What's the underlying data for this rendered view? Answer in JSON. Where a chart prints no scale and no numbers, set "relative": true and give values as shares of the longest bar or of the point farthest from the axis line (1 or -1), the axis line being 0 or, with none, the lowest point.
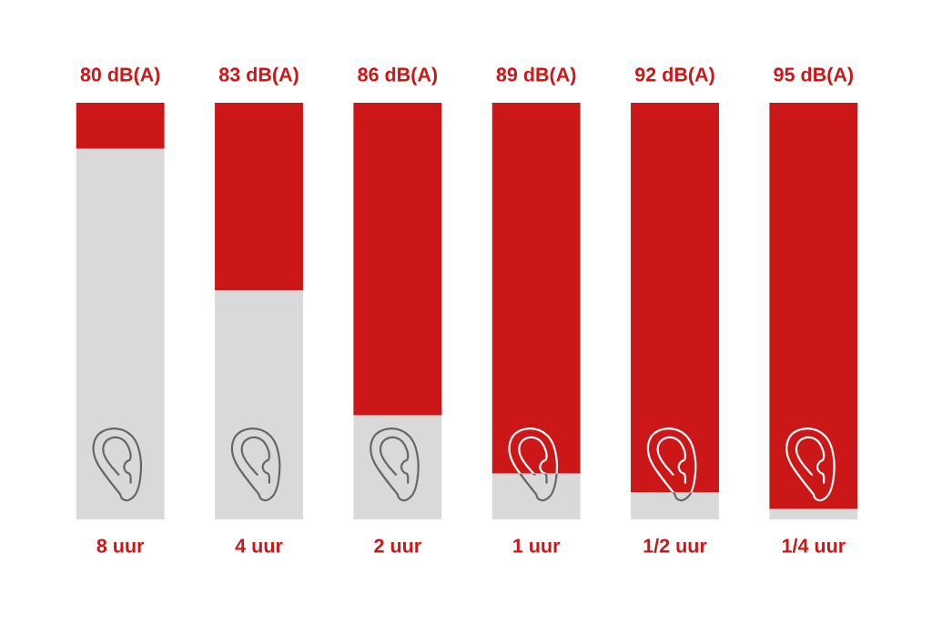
{
  "chart_data": {
    "type": "bar",
    "stacked": true,
    "relative": true,
    "categories": [
      "8 uur",
      "4 uur",
      "2 uur",
      "1 uur",
      "1/2 uur",
      "1/4 uur"
    ],
    "series": [
      {
        "color": "#d9d9d9",
        "values": [
          0.89,
          0.55,
          0.25,
          0.11,
          0.065,
          0.025
        ]
      },
      {
        "color": "#cc1719",
        "values": [
          0.11,
          0.45,
          0.75,
          0.89,
          0.935,
          0.975
        ]
      }
    ],
    "annotations": [
      {
        "text": "80 dB(A)",
        "x": "8 uur",
        "y": 1
      },
      {
        "text": "83 dB(A)",
        "x": "4 uur",
        "y": 1
      },
      {
        "text": "86 dB(A)",
        "x": "2 uur",
        "y": 1
      },
      {
        "text": "89 dB(A)",
        "x": "1 uur",
        "y": 1
      },
      {
        "text": "92 dB(A)",
        "x": "1/2 uur",
        "y": 1
      },
      {
        "text": "95 dB(A)",
        "x": "1/4 uur",
        "y": 1
      }
    ]
  }
}
